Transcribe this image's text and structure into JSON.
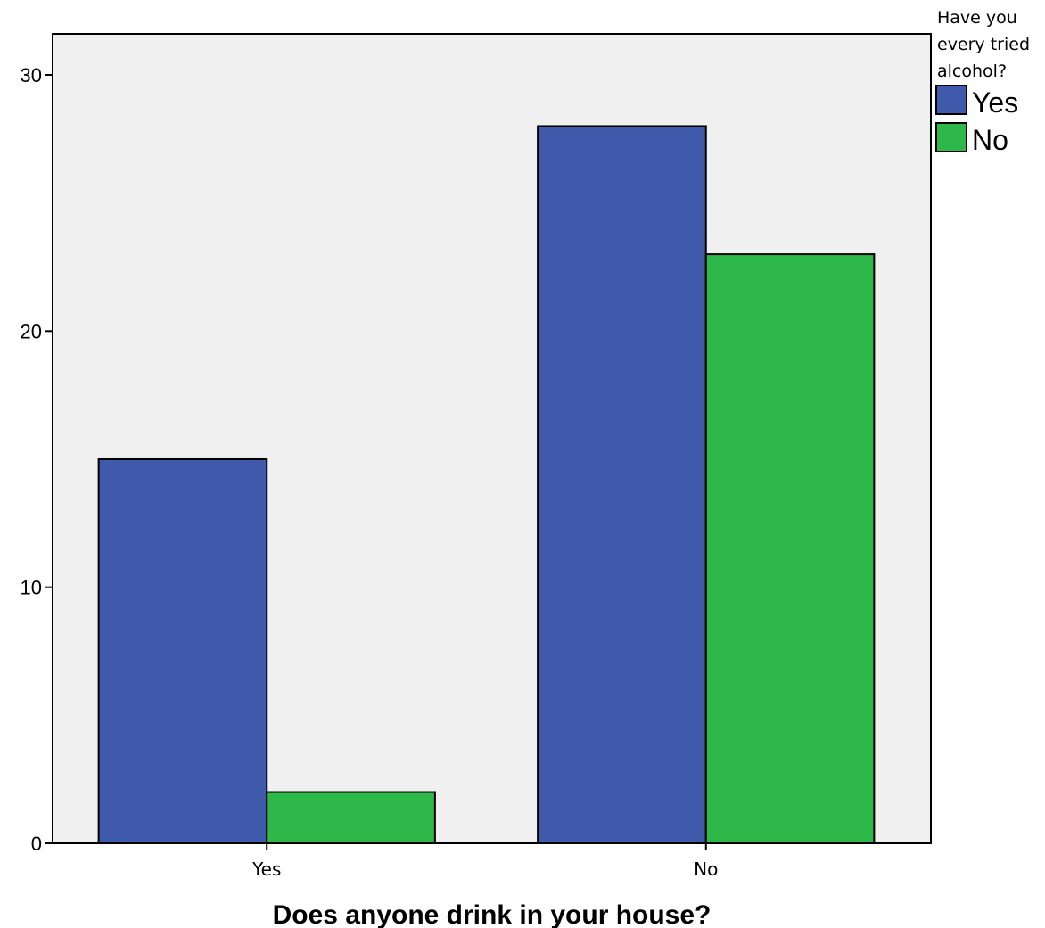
{
  "chart_data": {
    "type": "bar",
    "categories": [
      "Yes",
      "No"
    ],
    "series": [
      {
        "name": "Yes",
        "values": [
          15,
          28
        ],
        "color": "#3f5aab"
      },
      {
        "name": "No",
        "values": [
          2,
          23
        ],
        "color": "#2eb84a"
      }
    ],
    "title": "",
    "xlabel": "Does anyone drink in your house?",
    "ylabel": "",
    "ylim": [
      0,
      31.6
    ],
    "yticks": [
      0,
      10,
      20,
      30
    ],
    "grid": false,
    "legend": {
      "title_lines": [
        "Have you",
        "every tried",
        "alcohol?"
      ],
      "position": "top-right"
    },
    "plot_background": "#f0f0f0"
  }
}
